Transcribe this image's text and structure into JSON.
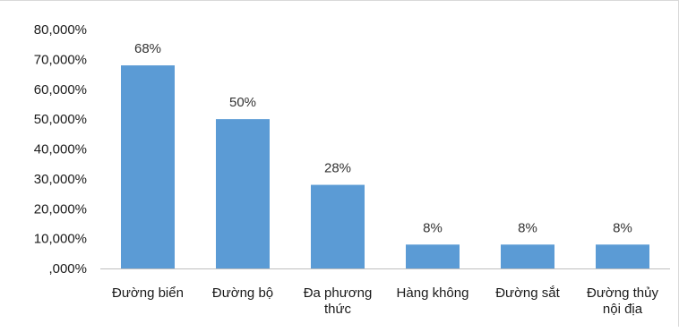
{
  "chart_data": {
    "type": "bar",
    "categories": [
      [
        "Đường biển"
      ],
      [
        "Đường bộ"
      ],
      [
        "Đa phương",
        "thức"
      ],
      [
        "Hàng không"
      ],
      [
        "Đường sắt"
      ],
      [
        "Đường thủy",
        "nội địa"
      ]
    ],
    "values": [
      68,
      50,
      28,
      8,
      8,
      8
    ],
    "data_labels": [
      "68%",
      "50%",
      "28%",
      "8%",
      "8%",
      "8%"
    ],
    "y_ticks": [
      {
        "value": 0,
        "label": ",000%"
      },
      {
        "value": 10,
        "label": "10,000%"
      },
      {
        "value": 20,
        "label": "20,000%"
      },
      {
        "value": 30,
        "label": "30,000%"
      },
      {
        "value": 40,
        "label": "40,000%"
      },
      {
        "value": 50,
        "label": "50,000%"
      },
      {
        "value": 60,
        "label": "60,000%"
      },
      {
        "value": 70,
        "label": "70,000%"
      },
      {
        "value": 80,
        "label": "80,000%"
      }
    ],
    "ylim": [
      0,
      80
    ],
    "grid": false,
    "colors": {
      "bar": "#5b9bd5",
      "axis": "#bfbfbf"
    }
  }
}
